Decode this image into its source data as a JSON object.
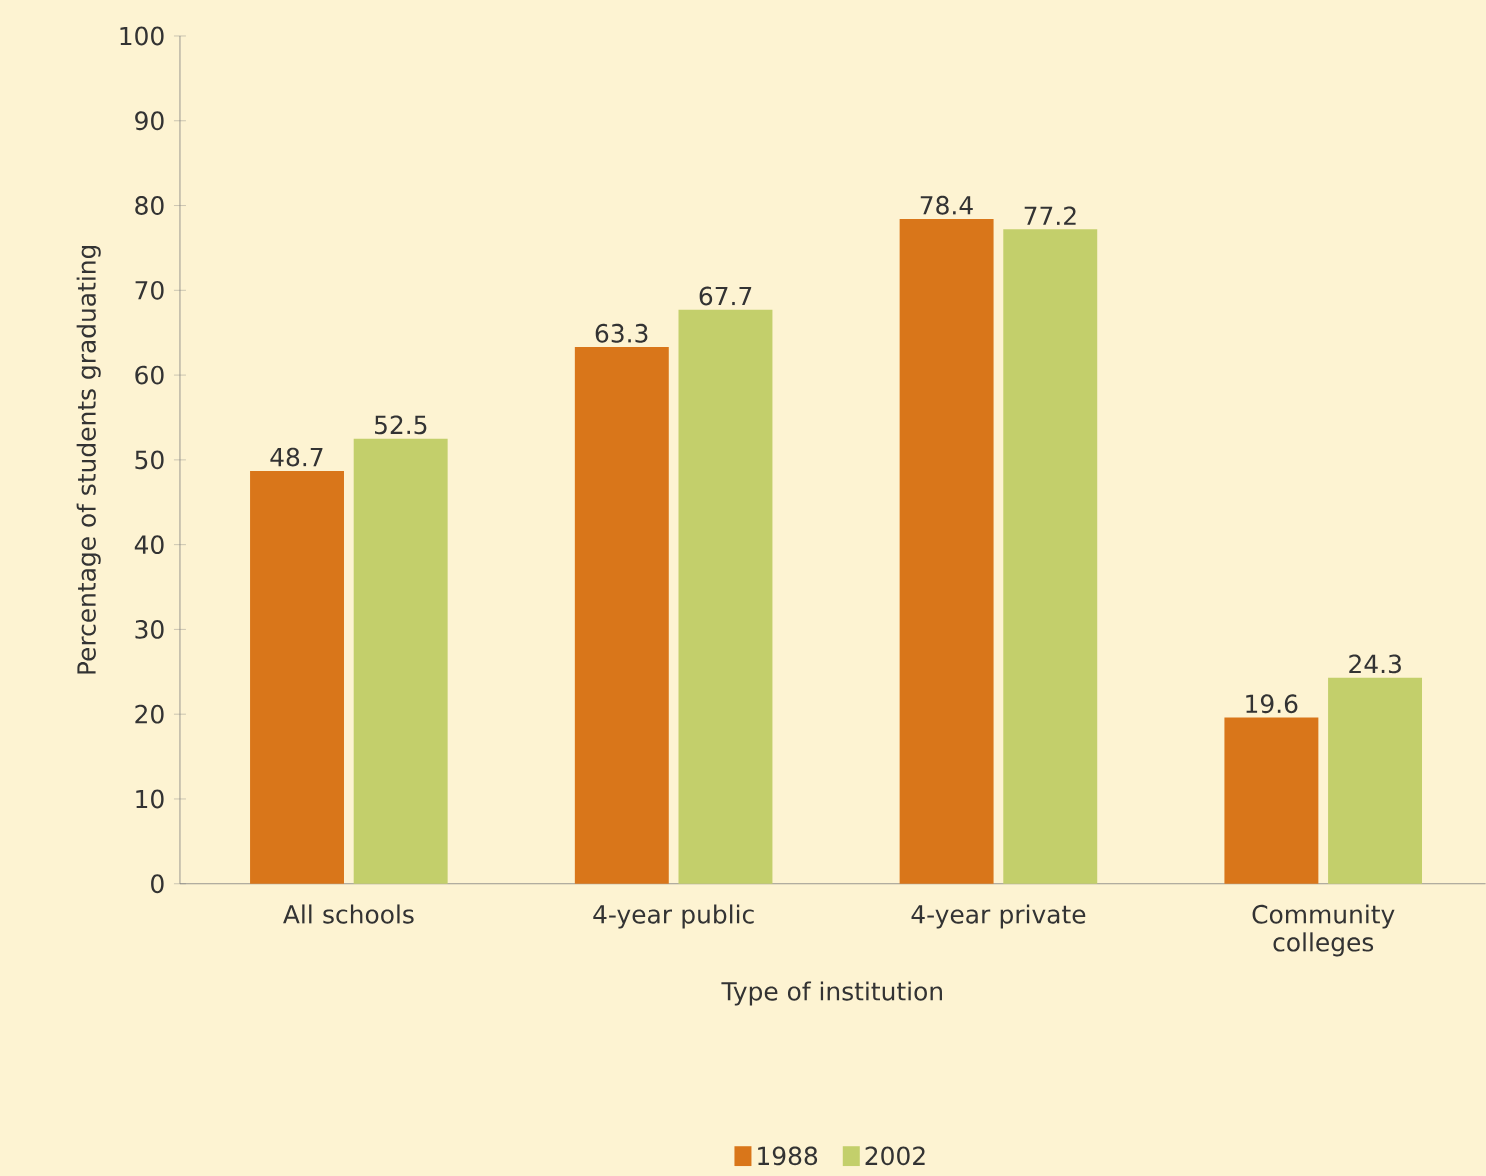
{
  "chart_data": {
    "type": "bar",
    "xlabel": "Type of institution",
    "ylabel": "Percentage of students graduating",
    "categories": [
      "All schools",
      "4-year public",
      "4-year private",
      "Community colleges"
    ],
    "series": [
      {
        "name": "1988",
        "color": "#d9761a",
        "values": [
          48.7,
          63.3,
          78.4,
          19.6
        ]
      },
      {
        "name": "2002",
        "color": "#c3cf6b",
        "values": [
          52.5,
          67.7,
          77.2,
          24.3
        ]
      }
    ],
    "ylim": [
      0,
      100
    ],
    "yticks": [
      0,
      10,
      20,
      30,
      40,
      50,
      60,
      70,
      80,
      90,
      100
    ],
    "data_labels": true,
    "grid": false,
    "legend": "bottom"
  }
}
